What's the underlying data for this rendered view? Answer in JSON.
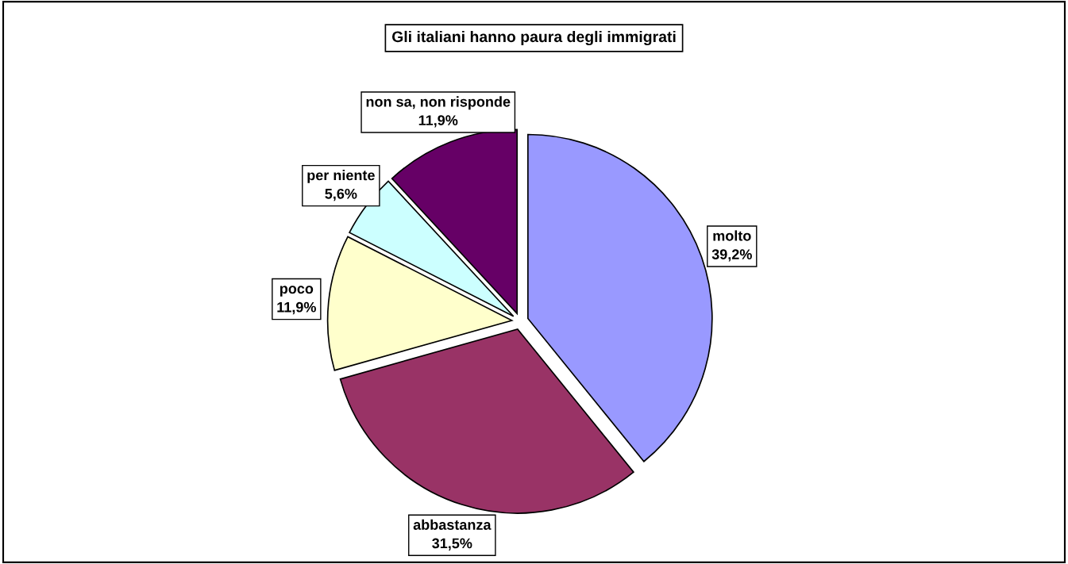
{
  "chart_data": {
    "type": "pie",
    "title": "Gli italiani hanno paura degli immigrati",
    "categories": [
      "molto",
      "abbastanza",
      "poco",
      "per niente",
      "non sa, non risponde"
    ],
    "values": [
      39.2,
      31.5,
      11.9,
      5.6,
      11.9
    ],
    "colors": [
      "#9999ff",
      "#993366",
      "#ffffcc",
      "#ccffff",
      "#660066"
    ],
    "value_labels": [
      "39,2%",
      "31,5%",
      "11,9%",
      "5,6%",
      "11,9%"
    ],
    "legend": false
  }
}
